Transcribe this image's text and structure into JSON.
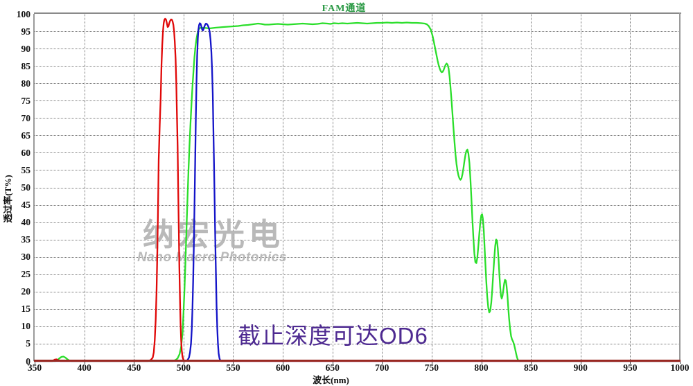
{
  "chart_data": {
    "type": "line",
    "title": "FAM通道",
    "xlabel": "波长(nm)",
    "ylabel": "透过率(T%)",
    "xlim": [
      350,
      1000
    ],
    "ylim": [
      0,
      100
    ],
    "x_ticks": [
      350,
      400,
      450,
      500,
      550,
      600,
      650,
      700,
      750,
      800,
      850,
      900,
      950,
      1000
    ],
    "y_ticks": [
      0,
      5,
      10,
      15,
      20,
      25,
      30,
      35,
      40,
      45,
      50,
      55,
      60,
      65,
      70,
      75,
      80,
      85,
      90,
      95,
      100
    ],
    "grid": true,
    "legend": "none",
    "series": [
      {
        "name": "green-passband-curve",
        "color": "#2ade2a",
        "points": [
          [
            350,
            0
          ],
          [
            371,
            0
          ],
          [
            373,
            0.3
          ],
          [
            375,
            0.8
          ],
          [
            377,
            1.2
          ],
          [
            379,
            1.3
          ],
          [
            381,
            1
          ],
          [
            383,
            0.5
          ],
          [
            385,
            0.15
          ],
          [
            387,
            0
          ],
          [
            489,
            0
          ],
          [
            492,
            0.3
          ],
          [
            494,
            0.8
          ],
          [
            496,
            2
          ],
          [
            497.5,
            4
          ],
          [
            499,
            8
          ],
          [
            500,
            14
          ],
          [
            501,
            21
          ],
          [
            502,
            29
          ],
          [
            503,
            38
          ],
          [
            504,
            47
          ],
          [
            505,
            55
          ],
          [
            506,
            62
          ],
          [
            507,
            68.5
          ],
          [
            508,
            74
          ],
          [
            509,
            79
          ],
          [
            510,
            83.5
          ],
          [
            511,
            87.5
          ],
          [
            512,
            90.5
          ],
          [
            513,
            92.8
          ],
          [
            514,
            94.3
          ],
          [
            515,
            95.3
          ],
          [
            516,
            95.8
          ],
          [
            517.5,
            96
          ],
          [
            520,
            96
          ],
          [
            523,
            95.9
          ],
          [
            526,
            95.8
          ],
          [
            529,
            95.9
          ],
          [
            532,
            96
          ],
          [
            536,
            96.1
          ],
          [
            540,
            96.2
          ],
          [
            545,
            96.3
          ],
          [
            550,
            96.4
          ],
          [
            555,
            96.5
          ],
          [
            560,
            96.7
          ],
          [
            565,
            96.8
          ],
          [
            570,
            97
          ],
          [
            575,
            97.2
          ],
          [
            578,
            97.1
          ],
          [
            582,
            96.9
          ],
          [
            586,
            96.9
          ],
          [
            590,
            97
          ],
          [
            595,
            97.1
          ],
          [
            600,
            97
          ],
          [
            605,
            96.9
          ],
          [
            610,
            97
          ],
          [
            615,
            97.1
          ],
          [
            620,
            97.2
          ],
          [
            625,
            97.1
          ],
          [
            630,
            97
          ],
          [
            635,
            97.1
          ],
          [
            640,
            97.3
          ],
          [
            645,
            97.2
          ],
          [
            648,
            97.1
          ],
          [
            652,
            97.3
          ],
          [
            656,
            97.2
          ],
          [
            660,
            97.3
          ],
          [
            665,
            97.2
          ],
          [
            670,
            97.3
          ],
          [
            675,
            97.4
          ],
          [
            680,
            97.3
          ],
          [
            685,
            97.2
          ],
          [
            690,
            97.3
          ],
          [
            695,
            97.4
          ],
          [
            700,
            97.4
          ],
          [
            705,
            97.5
          ],
          [
            710,
            97.4
          ],
          [
            715,
            97.5
          ],
          [
            720,
            97.4
          ],
          [
            725,
            97.5
          ],
          [
            730,
            97.4
          ],
          [
            735,
            97.4
          ],
          [
            740,
            97.3
          ],
          [
            743,
            97.2
          ],
          [
            745,
            97
          ],
          [
            747,
            96.5
          ],
          [
            749,
            95.5
          ],
          [
            750,
            94.6
          ],
          [
            751,
            93.5
          ],
          [
            752,
            92.2
          ],
          [
            753,
            90.8
          ],
          [
            754,
            89.3
          ],
          [
            755,
            87.9
          ],
          [
            756,
            86.5
          ],
          [
            757,
            85.3
          ],
          [
            758,
            84.3
          ],
          [
            759,
            83.6
          ],
          [
            760,
            83.2
          ],
          [
            761,
            83.3
          ],
          [
            762,
            83.8
          ],
          [
            763,
            84.6
          ],
          [
            764,
            85.3
          ],
          [
            765,
            85.7
          ],
          [
            766,
            85.4
          ],
          [
            767,
            84.3
          ],
          [
            768,
            82
          ],
          [
            769,
            78.8
          ],
          [
            770,
            75
          ],
          [
            771,
            71
          ],
          [
            772,
            67
          ],
          [
            773,
            63
          ],
          [
            774,
            59.5
          ],
          [
            775,
            56.8
          ],
          [
            776,
            54.8
          ],
          [
            777,
            53.4
          ],
          [
            778,
            52.6
          ],
          [
            779,
            52.2
          ],
          [
            780,
            52.6
          ],
          [
            781,
            53.8
          ],
          [
            782,
            55.6
          ],
          [
            783,
            57.6
          ],
          [
            784,
            59.4
          ],
          [
            785,
            60.6
          ],
          [
            786,
            60.9
          ],
          [
            787,
            59.8
          ],
          [
            788,
            57
          ],
          [
            789,
            52.5
          ],
          [
            790,
            47
          ],
          [
            791,
            41
          ],
          [
            792,
            35.5
          ],
          [
            793,
            31
          ],
          [
            794,
            28.5
          ],
          [
            795,
            28.2
          ],
          [
            796,
            29.8
          ],
          [
            797,
            33
          ],
          [
            798,
            36.8
          ],
          [
            799,
            40
          ],
          [
            800,
            42
          ],
          [
            800.8,
            42.3
          ],
          [
            801.6,
            41
          ],
          [
            802.4,
            38
          ],
          [
            803.2,
            33.5
          ],
          [
            804,
            28.5
          ],
          [
            805,
            23
          ],
          [
            806,
            18.5
          ],
          [
            807,
            15.3
          ],
          [
            808,
            14
          ],
          [
            809,
            14.5
          ],
          [
            810,
            16.8
          ],
          [
            811,
            20.5
          ],
          [
            812,
            25
          ],
          [
            813,
            29.5
          ],
          [
            814,
            33.2
          ],
          [
            815,
            35
          ],
          [
            815.8,
            34.6
          ],
          [
            816.6,
            32.5
          ],
          [
            817.4,
            29
          ],
          [
            818.2,
            25
          ],
          [
            819,
            21.3
          ],
          [
            819.8,
            18.8
          ],
          [
            820.6,
            18
          ],
          [
            821.4,
            18.8
          ],
          [
            822.2,
            20.5
          ],
          [
            823,
            22.3
          ],
          [
            823.8,
            23.4
          ],
          [
            824.6,
            23.2
          ],
          [
            825.4,
            21.8
          ],
          [
            826.2,
            19.3
          ],
          [
            827,
            16
          ],
          [
            828,
            12.3
          ],
          [
            829,
            9.2
          ],
          [
            830,
            7.2
          ],
          [
            831,
            6.2
          ],
          [
            832,
            5.6
          ],
          [
            833,
            4.8
          ],
          [
            834,
            3.6
          ],
          [
            835,
            2.2
          ],
          [
            836,
            1
          ],
          [
            837,
            0.3
          ],
          [
            838,
            0
          ],
          [
            1000,
            0
          ]
        ]
      },
      {
        "name": "blue-bandpass-curve",
        "color": "#1414c8",
        "points": [
          [
            350,
            0
          ],
          [
            502,
            0
          ],
          [
            504,
            0.3
          ],
          [
            505.5,
            1
          ],
          [
            506.5,
            2.5
          ],
          [
            507.5,
            5
          ],
          [
            508.3,
            9
          ],
          [
            509,
            15
          ],
          [
            509.7,
            23
          ],
          [
            510.4,
            33
          ],
          [
            511,
            44
          ],
          [
            511.7,
            57
          ],
          [
            512.4,
            70
          ],
          [
            513,
            80
          ],
          [
            513.7,
            88
          ],
          [
            514.4,
            93
          ],
          [
            515,
            95.5
          ],
          [
            515.7,
            96.8
          ],
          [
            516.4,
            97.3
          ],
          [
            517.2,
            97.1
          ],
          [
            518,
            96.3
          ],
          [
            518.8,
            95.4
          ],
          [
            519.5,
            95.2
          ],
          [
            520.3,
            95.7
          ],
          [
            521,
            96.3
          ],
          [
            521.8,
            96.9
          ],
          [
            522.6,
            97.2
          ],
          [
            523.4,
            97.1
          ],
          [
            524.2,
            96.8
          ],
          [
            525,
            96.3
          ],
          [
            525.8,
            95.6
          ],
          [
            526.5,
            94.5
          ],
          [
            527.2,
            92.5
          ],
          [
            528,
            89
          ],
          [
            528.7,
            84
          ],
          [
            529.4,
            77
          ],
          [
            530,
            68
          ],
          [
            530.7,
            57
          ],
          [
            531.4,
            45
          ],
          [
            532,
            34
          ],
          [
            532.7,
            24
          ],
          [
            533.3,
            16
          ],
          [
            534,
            9.5
          ],
          [
            534.7,
            5
          ],
          [
            535.4,
            2.2
          ],
          [
            536.2,
            0.8
          ],
          [
            537,
            0.2
          ],
          [
            538,
            0
          ],
          [
            1000,
            0
          ]
        ]
      },
      {
        "name": "red-bandpass-curve",
        "color": "#e00808",
        "points": [
          [
            350,
            0
          ],
          [
            368,
            0
          ],
          [
            370,
            0.4
          ],
          [
            372,
            0.5
          ],
          [
            374,
            0.2
          ],
          [
            376,
            0
          ],
          [
            464,
            0
          ],
          [
            467,
            0.3
          ],
          [
            469,
            1
          ],
          [
            470,
            2.5
          ],
          [
            471,
            6
          ],
          [
            472,
            12
          ],
          [
            472.8,
            20
          ],
          [
            473.5,
            30
          ],
          [
            474.2,
            42
          ],
          [
            475,
            58
          ],
          [
            476,
            68
          ],
          [
            477,
            76
          ],
          [
            477.8,
            85
          ],
          [
            478.5,
            91
          ],
          [
            479.3,
            95
          ],
          [
            480,
            97.3
          ],
          [
            480.7,
            98.3
          ],
          [
            481.5,
            98.6
          ],
          [
            482.3,
            98.4
          ],
          [
            483,
            97.6
          ],
          [
            484,
            96.2
          ],
          [
            484.8,
            96.4
          ],
          [
            485.6,
            97.3
          ],
          [
            486.5,
            98
          ],
          [
            487.5,
            98.4
          ],
          [
            488.3,
            98.3
          ],
          [
            489,
            97.8
          ],
          [
            489.8,
            96.8
          ],
          [
            490.5,
            95
          ],
          [
            491.2,
            92
          ],
          [
            492,
            87
          ],
          [
            492.7,
            80
          ],
          [
            493.3,
            72
          ],
          [
            494,
            62
          ],
          [
            494.6,
            50
          ],
          [
            495.2,
            38
          ],
          [
            495.8,
            27
          ],
          [
            496.4,
            18
          ],
          [
            497,
            11
          ],
          [
            497.6,
            6
          ],
          [
            498.2,
            3
          ],
          [
            499,
            1.2
          ],
          [
            500,
            0.3
          ],
          [
            501,
            0
          ],
          [
            1000,
            0
          ]
        ]
      }
    ]
  },
  "watermark": {
    "line1": "纳宏光电",
    "line2": "Nano Macro Photonics"
  },
  "annotation": {
    "text": "截止深度可达OD6",
    "color": "#4e2a91"
  },
  "colors": {
    "title_green": "#2a9944",
    "axis_line_dark_red": "#992822",
    "grid_gray": "#767676",
    "border_gray": "#8a8a8a",
    "tick_text": "#111111",
    "watermark_gray": "#b2b2b2"
  }
}
